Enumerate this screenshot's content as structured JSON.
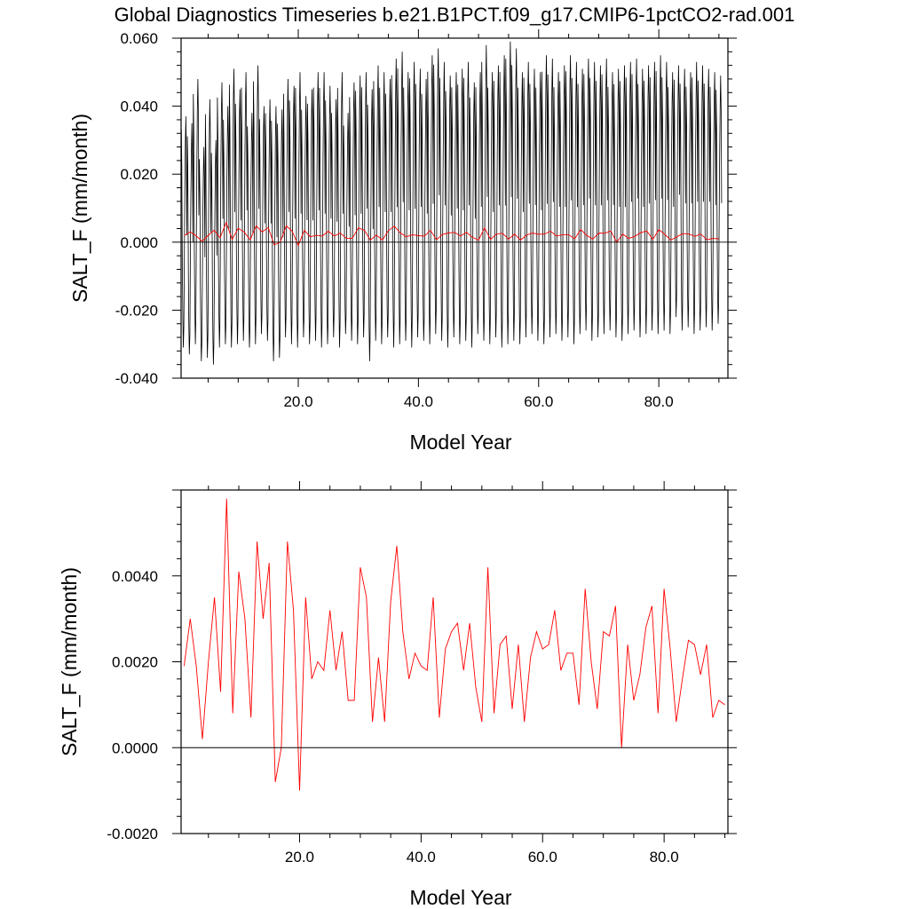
{
  "title": "Global Diagnostics Timeseries b.e21.B1PCT.f09_g17.CMIP6-1pctCO2-rad.001",
  "chart_data": [
    {
      "type": "line",
      "title": "Global Diagnostics Timeseries b.e21.B1PCT.f09_g17.CMIP6-1pctCO2-rad.001",
      "xlabel": "Model Year",
      "ylabel": "SALT_F (mm/month)",
      "xlim": [
        0.5,
        91.5
      ],
      "ylim": [
        -0.04,
        0.06
      ],
      "x_ticks": [
        20,
        40,
        60,
        80
      ],
      "x_tick_labels": [
        "20.0",
        "40.0",
        "60.0",
        "80.0"
      ],
      "y_ticks": [
        -0.04,
        -0.02,
        0.0,
        0.02,
        0.04,
        0.06
      ],
      "y_tick_labels": [
        "-0.040",
        "-0.020",
        "0.000",
        "0.020",
        "0.040",
        "0.060"
      ],
      "zero_line": true,
      "series": [
        {
          "color": "#000000",
          "style": "monthly",
          "monthly_pattern": [
            0.036,
            0.025,
            -0.005,
            -0.021,
            -0.03,
            -0.024,
            -0.002,
            0.018,
            0.032,
            0.04,
            0.03,
            0.004
          ],
          "annual_peaks": [
            0.037,
            0.035,
            0.048,
            0.028,
            0.042,
            0.03,
            0.047,
            0.04,
            0.051,
            0.045,
            0.05,
            0.038,
            0.052,
            0.04,
            0.042,
            0.04,
            0.039,
            0.048,
            0.046,
            0.05,
            0.043,
            0.045,
            0.05,
            0.05,
            0.046,
            0.042,
            0.05,
            0.038,
            0.047,
            0.049,
            0.05,
            0.045,
            0.052,
            0.05,
            0.048,
            0.054,
            0.056,
            0.05,
            0.053,
            0.051,
            0.048,
            0.055,
            0.057,
            0.053,
            0.049,
            0.05,
            0.051,
            0.053,
            0.047,
            0.05,
            0.058,
            0.05,
            0.052,
            0.055,
            0.059,
            0.057,
            0.05,
            0.053,
            0.051,
            0.05,
            0.055,
            0.054,
            0.05,
            0.052,
            0.055,
            0.053,
            0.051,
            0.054,
            0.053,
            0.052,
            0.054,
            0.05,
            0.051,
            0.052,
            0.053,
            0.054,
            0.051,
            0.052,
            0.053,
            0.055,
            0.053,
            0.05,
            0.052,
            0.051,
            0.05,
            0.053,
            0.052,
            0.051,
            0.05,
            0.049
          ],
          "annual_troughs": [
            -0.031,
            -0.033,
            -0.03,
            -0.035,
            -0.034,
            -0.036,
            -0.031,
            -0.03,
            -0.031,
            -0.03,
            -0.029,
            -0.031,
            -0.03,
            -0.027,
            -0.029,
            -0.035,
            -0.034,
            -0.028,
            -0.03,
            -0.031,
            -0.028,
            -0.03,
            -0.029,
            -0.031,
            -0.03,
            -0.028,
            -0.031,
            -0.027,
            -0.029,
            -0.03,
            -0.028,
            -0.035,
            -0.029,
            -0.03,
            -0.028,
            -0.031,
            -0.03,
            -0.029,
            -0.031,
            -0.028,
            -0.029,
            -0.03,
            -0.027,
            -0.029,
            -0.031,
            -0.028,
            -0.03,
            -0.029,
            -0.031,
            -0.027,
            -0.029,
            -0.03,
            -0.028,
            -0.031,
            -0.03,
            -0.029,
            -0.03,
            -0.028,
            -0.027,
            -0.029,
            -0.03,
            -0.028,
            -0.027,
            -0.029,
            -0.028,
            -0.03,
            -0.027,
            -0.026,
            -0.029,
            -0.028,
            -0.027,
            -0.026,
            -0.028,
            -0.029,
            -0.027,
            -0.026,
            -0.028,
            -0.027,
            -0.026,
            -0.027,
            -0.026,
            -0.027,
            -0.022,
            -0.026,
            -0.025,
            -0.027,
            -0.026,
            -0.025,
            -0.026,
            -0.024
          ]
        },
        {
          "color": "#ff0000",
          "style": "annual",
          "x": [
            1,
            2,
            3,
            4,
            5,
            6,
            7,
            8,
            9,
            10,
            11,
            12,
            13,
            14,
            15,
            16,
            17,
            18,
            19,
            20,
            21,
            22,
            23,
            24,
            25,
            26,
            27,
            28,
            29,
            30,
            31,
            32,
            33,
            34,
            35,
            36,
            37,
            38,
            39,
            40,
            41,
            42,
            43,
            44,
            45,
            46,
            47,
            48,
            49,
            50,
            51,
            52,
            53,
            54,
            55,
            56,
            57,
            58,
            59,
            60,
            61,
            62,
            63,
            64,
            65,
            66,
            67,
            68,
            69,
            70,
            71,
            72,
            73,
            74,
            75,
            76,
            77,
            78,
            79,
            80,
            81,
            82,
            83,
            84,
            85,
            86,
            87,
            88,
            89,
            90
          ],
          "values": [
            0.0019,
            0.003,
            0.0019,
            0.0002,
            0.002,
            0.0035,
            0.0013,
            0.0058,
            0.0008,
            0.0041,
            0.003,
            0.0007,
            0.0048,
            0.003,
            0.0043,
            -0.0008,
            0.0,
            0.0048,
            0.0032,
            -0.001,
            0.0035,
            0.0016,
            0.002,
            0.0018,
            0.0032,
            0.0018,
            0.0027,
            0.0011,
            0.0011,
            0.0042,
            0.0035,
            0.0006,
            0.0021,
            0.0006,
            0.0034,
            0.0047,
            0.0027,
            0.0016,
            0.0022,
            0.0019,
            0.0018,
            0.0035,
            0.0007,
            0.0023,
            0.0027,
            0.0029,
            0.0018,
            0.0029,
            0.0014,
            0.0006,
            0.0042,
            0.0008,
            0.0024,
            0.0026,
            0.0009,
            0.0024,
            0.0006,
            0.0021,
            0.0027,
            0.0023,
            0.0024,
            0.0032,
            0.0018,
            0.0022,
            0.0022,
            0.001,
            0.0037,
            0.002,
            0.0009,
            0.0027,
            0.0026,
            0.0033,
            0.0,
            0.0024,
            0.0011,
            0.0017,
            0.0028,
            0.0033,
            0.0008,
            0.0037,
            0.0023,
            0.0006,
            0.0016,
            0.0025,
            0.0024,
            0.0017,
            0.0024,
            0.0007,
            0.0011,
            0.001
          ]
        }
      ]
    },
    {
      "type": "line",
      "xlabel": "Model Year",
      "ylabel": "SALT_F (mm/month)",
      "xlim": [
        0.5,
        90.5
      ],
      "ylim": [
        -0.002,
        0.006
      ],
      "x_ticks": [
        20,
        40,
        60,
        80
      ],
      "x_tick_labels": [
        "20.0",
        "40.0",
        "60.0",
        "80.0"
      ],
      "y_ticks": [
        -0.002,
        0.0,
        0.002,
        0.004
      ],
      "y_tick_labels": [
        "-0.0020",
        "0.0000",
        "0.0020",
        "0.0040"
      ],
      "zero_line": true,
      "series": [
        {
          "color": "#ff0000",
          "x": [
            1,
            2,
            3,
            4,
            5,
            6,
            7,
            8,
            9,
            10,
            11,
            12,
            13,
            14,
            15,
            16,
            17,
            18,
            19,
            20,
            21,
            22,
            23,
            24,
            25,
            26,
            27,
            28,
            29,
            30,
            31,
            32,
            33,
            34,
            35,
            36,
            37,
            38,
            39,
            40,
            41,
            42,
            43,
            44,
            45,
            46,
            47,
            48,
            49,
            50,
            51,
            52,
            53,
            54,
            55,
            56,
            57,
            58,
            59,
            60,
            61,
            62,
            63,
            64,
            65,
            66,
            67,
            68,
            69,
            70,
            71,
            72,
            73,
            74,
            75,
            76,
            77,
            78,
            79,
            80,
            81,
            82,
            83,
            84,
            85,
            86,
            87,
            88,
            89,
            90
          ],
          "values": [
            0.0019,
            0.003,
            0.0019,
            0.0002,
            0.002,
            0.0035,
            0.0013,
            0.0058,
            0.0008,
            0.0041,
            0.003,
            0.0007,
            0.0048,
            0.003,
            0.0043,
            -0.0008,
            0.0,
            0.0048,
            0.0032,
            -0.001,
            0.0035,
            0.0016,
            0.002,
            0.0018,
            0.0032,
            0.0018,
            0.0027,
            0.0011,
            0.0011,
            0.0042,
            0.0035,
            0.0006,
            0.0021,
            0.0006,
            0.0034,
            0.0047,
            0.0027,
            0.0016,
            0.0022,
            0.0019,
            0.0018,
            0.0035,
            0.0007,
            0.0023,
            0.0027,
            0.0029,
            0.0018,
            0.0029,
            0.0014,
            0.0006,
            0.0042,
            0.0008,
            0.0024,
            0.0026,
            0.0009,
            0.0024,
            0.0006,
            0.0021,
            0.0027,
            0.0023,
            0.0024,
            0.0032,
            0.0018,
            0.0022,
            0.0022,
            0.001,
            0.0037,
            0.002,
            0.0009,
            0.0027,
            0.0026,
            0.0033,
            0.0,
            0.0024,
            0.0011,
            0.0017,
            0.0028,
            0.0033,
            0.0008,
            0.0037,
            0.0023,
            0.0006,
            0.0016,
            0.0025,
            0.0024,
            0.0017,
            0.0024,
            0.0007,
            0.0011,
            0.001
          ]
        }
      ]
    }
  ]
}
